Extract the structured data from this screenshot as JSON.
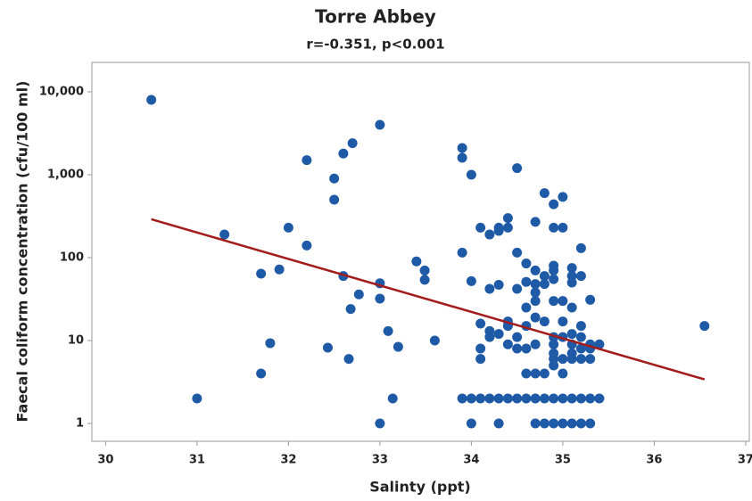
{
  "chart_data": {
    "type": "scatter",
    "title": "Torre Abbey",
    "subtitle": "r=-0.351, p<0.001",
    "x_label": "Salinty (ppt)",
    "y_label": "Faecal coliform concentration (cfu/100 ml)",
    "log_y": true,
    "xlim": [
      29.85,
      37.04
    ],
    "ylim": [
      0.61,
      22600
    ],
    "xticks": [
      30,
      31,
      32,
      33,
      34,
      35,
      36,
      37
    ],
    "yticks": [
      1,
      10,
      100,
      {
        "value": 1000,
        "label": "1,000"
      },
      {
        "value": 10000,
        "label": "10,000"
      }
    ],
    "series": [
      {
        "color": "#1f5aa6",
        "x": [
          30.5,
          31.0,
          31.3,
          31.7,
          31.7,
          31.8,
          31.9,
          32.0,
          32.2,
          32.2,
          32.43,
          32.5,
          32.5,
          32.6,
          32.6,
          32.66,
          32.7,
          32.68,
          32.77,
          33.0,
          33.0,
          33.0,
          33.0,
          33.09,
          33.14,
          33.2,
          33.4,
          33.49,
          33.49,
          33.6,
          33.9,
          33.9,
          33.9,
          33.9,
          34.0,
          34.0,
          34.0,
          34.0,
          34.1,
          34.1,
          34.1,
          34.1,
          34.1,
          34.2,
          34.2,
          34.2,
          34.2,
          34.2,
          34.3,
          34.3,
          34.3,
          34.3,
          34.3,
          34.3,
          34.4,
          34.4,
          34.4,
          34.4,
          34.4,
          34.4,
          34.5,
          34.5,
          34.5,
          34.5,
          34.5,
          34.5,
          34.6,
          34.6,
          34.6,
          34.6,
          34.6,
          34.6,
          34.6,
          34.7,
          34.7,
          34.7,
          34.7,
          34.7,
          34.7,
          34.7,
          34.7,
          34.7,
          34.7,
          34.8,
          34.8,
          34.8,
          34.8,
          34.8,
          34.8,
          34.8,
          34.9,
          34.9,
          34.9,
          34.9,
          34.9,
          34.9,
          34.9,
          34.9,
          34.9,
          34.9,
          34.9,
          34.9,
          34.9,
          35.0,
          35.0,
          35.0,
          35.0,
          35.0,
          35.0,
          35.0,
          35.0,
          35.0,
          35.1,
          35.1,
          35.1,
          35.1,
          35.1,
          35.1,
          35.1,
          35.1,
          35.1,
          35.1,
          35.2,
          35.2,
          35.2,
          35.2,
          35.2,
          35.2,
          35.2,
          35.2,
          35.3,
          35.3,
          35.3,
          35.3,
          35.3,
          35.3,
          35.4,
          35.4,
          36.55
        ],
        "values": [
          8000,
          2,
          190,
          4,
          64,
          9.3,
          72,
          230,
          1500,
          140,
          8.2,
          900,
          500,
          1800,
          60,
          6,
          2400,
          24,
          36,
          4000,
          49,
          32,
          1,
          13,
          2,
          8.4,
          90,
          70,
          54,
          10,
          2100,
          1600,
          115,
          2,
          1000,
          52,
          2,
          1,
          230,
          16,
          8,
          6,
          2,
          190,
          42,
          13,
          11,
          2,
          230,
          210,
          47,
          12,
          2,
          1,
          300,
          230,
          17,
          15,
          9,
          2,
          1200,
          115,
          42,
          11,
          8,
          2,
          85,
          51,
          25,
          15,
          8,
          4,
          2,
          270,
          70,
          48,
          38,
          30,
          19,
          9,
          4,
          2,
          1,
          600,
          60,
          48,
          17,
          4,
          2,
          1,
          440,
          230,
          80,
          70,
          55,
          30,
          11,
          9,
          7,
          6,
          5,
          2,
          1,
          540,
          230,
          30,
          17,
          11,
          6,
          4,
          2,
          1,
          75,
          60,
          50,
          25,
          12,
          9,
          7,
          6,
          2,
          1,
          130,
          60,
          15,
          11,
          8,
          6,
          2,
          1,
          31,
          9,
          8,
          6,
          2,
          1,
          9,
          2,
          15
        ]
      }
    ],
    "trend": {
      "color": "#a31c1c",
      "x": [
        30.5,
        36.55
      ],
      "values": [
        290,
        3.4
      ]
    }
  }
}
